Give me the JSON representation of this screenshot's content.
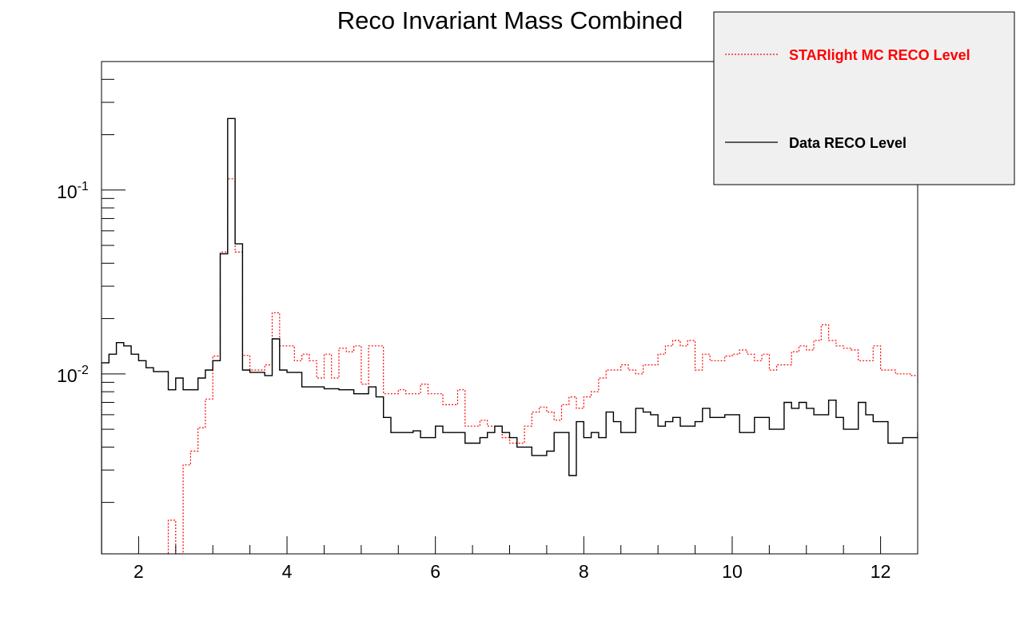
{
  "chart_data": {
    "type": "histogram",
    "title": "Reco Invariant Mass Combined",
    "xlabel": "",
    "ylabel": "",
    "xlim": [
      1.5,
      12.5
    ],
    "ylim": [
      0.00105,
      0.5
    ],
    "ylog": true,
    "x_ticks": [
      2,
      4,
      6,
      8,
      10,
      12
    ],
    "x_tick_labels": [
      "2",
      "4",
      "6",
      "8",
      "10",
      "12"
    ],
    "y_ticks": [
      0.01,
      0.1
    ],
    "y_tick_labels": [
      {
        "base": "10",
        "exp": "-2"
      },
      {
        "base": "10",
        "exp": "-1"
      }
    ],
    "bin_start": 1.5,
    "bin_width": 0.1,
    "legend_position": "top-right",
    "series": [
      {
        "name": "STARlight MC RECO Level",
        "color": "#ff0000",
        "line_style": "dotted",
        "values": [
          0,
          0,
          0,
          0,
          0,
          0,
          0,
          0,
          0,
          0.0016,
          0,
          0.0032,
          0.0038,
          0.0051,
          0.0073,
          0.0125,
          0.046,
          0.115,
          0.046,
          0.0126,
          0.0105,
          0.0105,
          0.0112,
          0.0215,
          0.0142,
          0.0142,
          0.0118,
          0.0128,
          0.0118,
          0.0095,
          0.0128,
          0.0095,
          0.0138,
          0.0132,
          0.0142,
          0.0088,
          0.0142,
          0.0142,
          0.0078,
          0.0078,
          0.0082,
          0.0078,
          0.0078,
          0.0088,
          0.0078,
          0.0078,
          0.0068,
          0.0068,
          0.0082,
          0.0052,
          0.0052,
          0.0056,
          0.0052,
          0.0052,
          0.0045,
          0.0042,
          0.0042,
          0.0052,
          0.0062,
          0.0066,
          0.0062,
          0.0056,
          0.0068,
          0.0075,
          0.0065,
          0.0075,
          0.008,
          0.0095,
          0.0105,
          0.0105,
          0.0112,
          0.0105,
          0.01,
          0.0112,
          0.0112,
          0.0128,
          0.0142,
          0.0152,
          0.0142,
          0.0152,
          0.0105,
          0.0128,
          0.0118,
          0.0118,
          0.0125,
          0.0128,
          0.0135,
          0.0128,
          0.0118,
          0.0128,
          0.0105,
          0.0112,
          0.0112,
          0.0132,
          0.0142,
          0.0135,
          0.0152,
          0.0185,
          0.0152,
          0.0142,
          0.0138,
          0.0135,
          0.0118,
          0.0118,
          0.0142,
          0.0105,
          0.0105,
          0.01,
          0.01,
          0.0098,
          0.009,
          0.0105,
          0.01,
          0.01,
          0.0088,
          0.0088,
          0.0105,
          0.0098,
          0.0078,
          0.0078,
          0.0088,
          0.0075,
          0.0068,
          0.0068,
          0.0041,
          0.0051,
          0.0052,
          0.0052,
          0.0028,
          0.0028,
          0.0016,
          0.0008,
          0.0008
        ]
      },
      {
        "name": "Data RECO Level",
        "color": "#000000",
        "line_style": "solid",
        "values": [
          0.0115,
          0.0128,
          0.0148,
          0.0142,
          0.0128,
          0.0118,
          0.0108,
          0.0103,
          0.0103,
          0.0082,
          0.0095,
          0.0082,
          0.0082,
          0.0095,
          0.0105,
          0.0118,
          0.045,
          0.245,
          0.051,
          0.0105,
          0.0102,
          0.0102,
          0.0098,
          0.0155,
          0.0105,
          0.0102,
          0.0102,
          0.0085,
          0.0085,
          0.0085,
          0.0083,
          0.0083,
          0.0082,
          0.0082,
          0.0078,
          0.0078,
          0.0085,
          0.0075,
          0.0058,
          0.0048,
          0.0048,
          0.0048,
          0.0049,
          0.0045,
          0.0045,
          0.0052,
          0.0048,
          0.0048,
          0.0048,
          0.0042,
          0.0042,
          0.0045,
          0.0048,
          0.0052,
          0.0048,
          0.0045,
          0.004,
          0.004,
          0.0036,
          0.0036,
          0.0038,
          0.0048,
          0.0048,
          0.0028,
          0.0055,
          0.0045,
          0.0048,
          0.0045,
          0.0062,
          0.0055,
          0.0048,
          0.0048,
          0.0065,
          0.0062,
          0.006,
          0.0052,
          0.0055,
          0.0058,
          0.0052,
          0.0052,
          0.0055,
          0.0065,
          0.0058,
          0.0058,
          0.006,
          0.006,
          0.0048,
          0.0048,
          0.0058,
          0.0058,
          0.005,
          0.005,
          0.007,
          0.0065,
          0.007,
          0.0065,
          0.006,
          0.006,
          0.0072,
          0.0058,
          0.005,
          0.005,
          0.007,
          0.006,
          0.0055,
          0.0055,
          0.0042,
          0.0042,
          0.0045,
          0.0045,
          0.0048,
          0.0052,
          0.005,
          0.0052,
          0.0055,
          0.0048,
          0.0045,
          0.0045,
          0.0042,
          0.0042,
          0.0038,
          0.0035,
          0.0035,
          0.0028,
          0.0028,
          0.0042,
          0.0042,
          0.0055,
          0.0038,
          0.0038,
          0.003,
          0.0025,
          0.0025,
          0.002
        ]
      }
    ]
  }
}
